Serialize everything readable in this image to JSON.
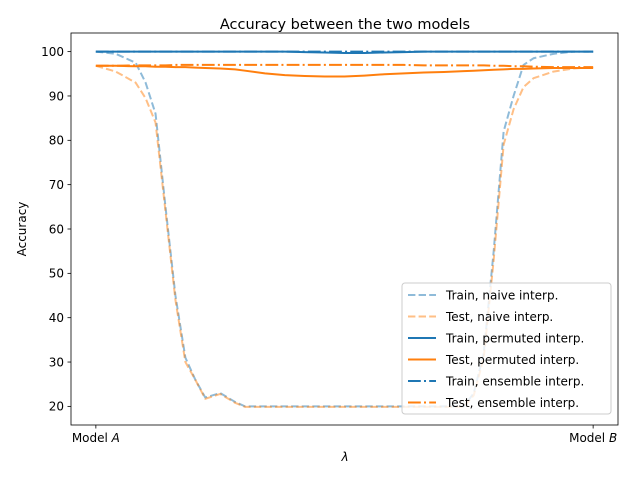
{
  "chart_data": {
    "type": "line",
    "title": "Accuracy between the two models",
    "xlabel": "λ",
    "ylabel": "Accuracy",
    "xlim": [
      -0.05,
      1.05
    ],
    "ylim": [
      15.8,
      104.2
    ],
    "x_tick_values": [
      0,
      1
    ],
    "x_tick_labels": [
      {
        "text": "Model ",
        "italic": "A"
      },
      {
        "text": "Model ",
        "italic": "B"
      }
    ],
    "y_ticks": [
      20,
      30,
      40,
      50,
      60,
      70,
      80,
      90,
      100
    ],
    "grid": false,
    "legend_position": "lower-right",
    "colors": {
      "blue": "#1f77b4",
      "orange": "#ff7f0e"
    },
    "x": [
      0.0,
      0.04,
      0.08,
      0.1,
      0.12,
      0.14,
      0.16,
      0.18,
      0.2,
      0.22,
      0.25,
      0.28,
      0.3,
      0.34,
      0.38,
      0.42,
      0.46,
      0.5,
      0.54,
      0.58,
      0.62,
      0.66,
      0.7,
      0.74,
      0.76,
      0.78,
      0.8,
      0.82,
      0.84,
      0.86,
      0.88,
      0.92,
      0.96,
      1.0
    ],
    "series": [
      {
        "name": "Train, naive interp.",
        "color": "#1f77b4",
        "style": "dashed",
        "alpha": 0.5,
        "values": [
          100,
          99.5,
          97.5,
          93,
          86,
          65,
          45,
          31,
          26,
          22,
          23,
          21,
          20,
          20,
          20,
          20,
          20,
          20,
          20,
          20,
          20,
          20,
          20,
          20,
          23,
          32,
          55,
          82,
          90,
          97,
          98.5,
          99.5,
          100,
          100
        ]
      },
      {
        "name": "Test, naive interp.",
        "color": "#ff7f0e",
        "style": "dashed",
        "alpha": 0.5,
        "values": [
          96.8,
          95.5,
          93,
          89.5,
          84,
          64,
          44,
          30,
          26,
          21.7,
          22.8,
          20.8,
          19.9,
          19.9,
          19.9,
          19.9,
          19.9,
          19.9,
          19.9,
          19.9,
          19.9,
          19.9,
          19.9,
          19.9,
          22.5,
          31,
          53,
          79,
          87,
          92,
          94,
          95.5,
          96.2,
          96.5
        ]
      },
      {
        "name": "Train, permuted interp.",
        "color": "#1f77b4",
        "style": "solid",
        "alpha": 1,
        "values": [
          100,
          100,
          100,
          100,
          100,
          100,
          100,
          100,
          100,
          100,
          100,
          100,
          100,
          100,
          100,
          99.9,
          99.8,
          99.7,
          99.7,
          99.8,
          99.9,
          100,
          100,
          100,
          100,
          100,
          100,
          100,
          100,
          100,
          100,
          100,
          100,
          100
        ]
      },
      {
        "name": "Test, permuted interp.",
        "color": "#ff7f0e",
        "style": "solid",
        "alpha": 1,
        "values": [
          96.8,
          96.8,
          96.7,
          96.7,
          96.6,
          96.6,
          96.5,
          96.5,
          96.4,
          96.3,
          96.2,
          96.0,
          95.7,
          95.1,
          94.7,
          94.5,
          94.4,
          94.4,
          94.6,
          94.9,
          95.1,
          95.3,
          95.4,
          95.6,
          95.7,
          95.8,
          95.9,
          96.0,
          96.1,
          96.1,
          96.2,
          96.3,
          96.3,
          96.3
        ]
      },
      {
        "name": "Train, ensemble interp.",
        "color": "#1f77b4",
        "style": "dashdot",
        "alpha": 1,
        "values": [
          100,
          100,
          100,
          100,
          100,
          100,
          100,
          100,
          100,
          100,
          100,
          100,
          100,
          100,
          100,
          100,
          100,
          100,
          100,
          100,
          100,
          100,
          100,
          100,
          100,
          100,
          100,
          100,
          100,
          100,
          100,
          100,
          100,
          100
        ]
      },
      {
        "name": "Test, ensemble interp.",
        "color": "#ff7f0e",
        "style": "dashdot",
        "alpha": 1,
        "values": [
          96.8,
          96.8,
          96.9,
          96.9,
          96.9,
          96.9,
          97.0,
          97.0,
          97.0,
          97.0,
          97.0,
          97.0,
          97.0,
          97.0,
          97.0,
          97.0,
          97.0,
          97.0,
          97.0,
          97.0,
          97.0,
          96.9,
          96.9,
          96.9,
          96.9,
          96.9,
          96.8,
          96.8,
          96.7,
          96.7,
          96.6,
          96.5,
          96.5,
          96.5
        ]
      }
    ]
  }
}
